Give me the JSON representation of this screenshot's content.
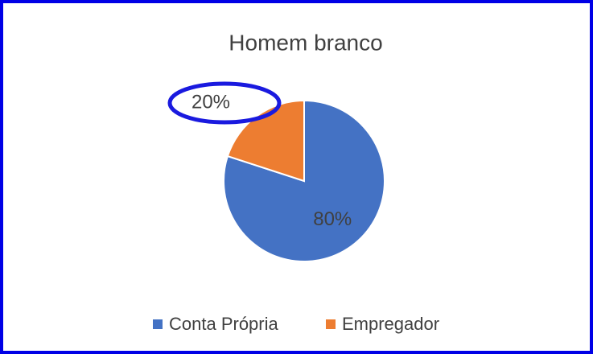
{
  "chart_data": {
    "type": "pie",
    "title": "Homem branco",
    "categories": [
      "Conta Própria",
      "Empregador"
    ],
    "values": [
      80,
      20
    ],
    "value_labels": [
      "80%",
      "20%"
    ],
    "colors": [
      "#4472c4",
      "#ed7d31"
    ],
    "legend": "bottom"
  }
}
